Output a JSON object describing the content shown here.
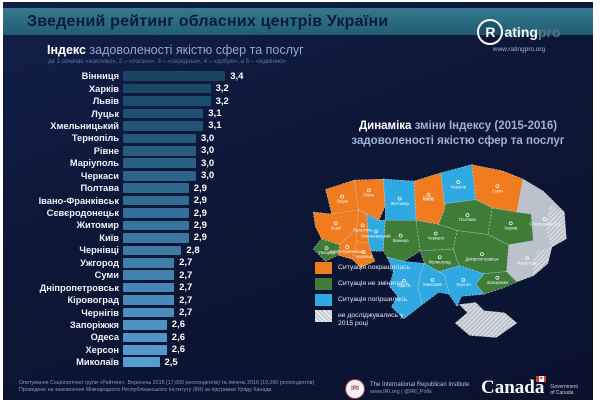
{
  "header": {
    "title": "Зведений рейтинг обласних центрів України",
    "brand": {
      "circle_letter": "R",
      "name_rest": "ating",
      "name_suffix": "pro",
      "url": "www.ratingpro.org"
    }
  },
  "left_panel": {
    "heading_bold": "Індекс",
    "heading_rest": " задоволеності якістю сфер та послуг",
    "scale_note": "де 1 означає «жахливо», 2 – «погано», 3 – «середньо», 4 – «добре», а 5 – «відмінно»"
  },
  "right_panel": {
    "heading_bold": "Динаміка",
    "heading_rest": " зміни Індексу (2015-2016)",
    "heading_line2": "задоволеності якістю сфер та послуг"
  },
  "chart_data": [
    {
      "type": "bar",
      "orientation": "horizontal",
      "title": "Індекс задоволеності якістю сфер та послуг",
      "scale_note": "де 1 означає «жахливо», 2 – «погано», 3 – «середньо», 4 – «добре», а 5 – «відмінно»",
      "categories": [
        "Вінниця",
        "Харків",
        "Львів",
        "Луцьк",
        "Хмельницький",
        "Тернопіль",
        "Рівне",
        "Маріуполь",
        "Черкаси",
        "Полтава",
        "Івано-Франківськ",
        "Сєвєродонецьк",
        "Житомир",
        "Київ",
        "Чернівці",
        "Ужгород",
        "Суми",
        "Дніпропетровськ",
        "Кіровоград",
        "Чернігів",
        "Запоріжжя",
        "Одеса",
        "Херсон",
        "Миколаїв"
      ],
      "values": [
        3.4,
        3.2,
        3.2,
        3.1,
        3.1,
        3.0,
        3.0,
        3.0,
        3.0,
        2.9,
        2.9,
        2.9,
        2.9,
        2.9,
        2.8,
        2.7,
        2.7,
        2.7,
        2.7,
        2.7,
        2.6,
        2.6,
        2.6,
        2.5
      ],
      "value_labels": [
        "3,4",
        "3,2",
        "3,2",
        "3,1",
        "3,1",
        "3,0",
        "3,0",
        "3,0",
        "3,0",
        "2,9",
        "2,9",
        "2,9",
        "2,9",
        "2,9",
        "2,8",
        "2,7",
        "2,7",
        "2,7",
        "2,7",
        "2,7",
        "2,6",
        "2,6",
        "2,6",
        "2,5"
      ],
      "xlim": [
        2.0,
        3.5
      ],
      "bar_color_top": "#174563",
      "bar_color_bottom": "#569dd0"
    },
    {
      "type": "choropleth",
      "title": "Динаміка зміни Індексу (2015-2016) задоволеності якістю сфер та послуг",
      "status_colors": {
        "improved": "#f07c1f",
        "unchanged": "#3e7c38",
        "worsened": "#2fa9e1",
        "not_surveyed": "#bcc2cb"
      },
      "legend": [
        {
          "status": "improved",
          "label": "Ситуація покращилась"
        },
        {
          "status": "unchanged",
          "label": "Ситуація не змінилась"
        },
        {
          "status": "worsened",
          "label": "Ситуація погіршилась"
        },
        {
          "status": "not_surveyed",
          "label": "не досліджувались у 2015 році"
        }
      ],
      "regions": [
        {
          "region": "volyn",
          "city": "Луцьк",
          "status": "improved"
        },
        {
          "region": "rivne",
          "city": "Рівне",
          "status": "improved"
        },
        {
          "region": "zhytomyr",
          "city": "Житомир",
          "status": "worsened"
        },
        {
          "region": "kyiv",
          "city": "Київ",
          "status": "improved",
          "bold": true
        },
        {
          "region": "chernihiv",
          "city": "Чернігів",
          "status": "worsened"
        },
        {
          "region": "sumy",
          "city": "Суми",
          "status": "improved"
        },
        {
          "region": "lviv",
          "city": "Львів",
          "status": "improved"
        },
        {
          "region": "ternopil",
          "city": "Тернопіль",
          "status": "improved"
        },
        {
          "region": "khmelnytskyi",
          "city": "Хмельницький",
          "status": "worsened"
        },
        {
          "region": "vinnytsia",
          "city": "Вінниця",
          "status": "unchanged"
        },
        {
          "region": "cherkasy",
          "city": "Черкаси",
          "status": "unchanged"
        },
        {
          "region": "poltava",
          "city": "Полтава",
          "status": "unchanged"
        },
        {
          "region": "kharkiv",
          "city": "Харків",
          "status": "unchanged"
        },
        {
          "region": "luhansk",
          "city": "Сєвєродонецьк",
          "status": "not_surveyed"
        },
        {
          "region": "donetsk",
          "city": "Маріуполь",
          "status": "not_surveyed"
        },
        {
          "region": "zakarpattia",
          "city": "Ужгород",
          "status": "unchanged"
        },
        {
          "region": "ivano-frankivsk",
          "city": "Івано-Франківськ",
          "status": "improved"
        },
        {
          "region": "chernivtsi",
          "city": "Чернівці",
          "status": "improved"
        },
        {
          "region": "kirovohrad",
          "city": "Кіровоград",
          "status": "unchanged"
        },
        {
          "region": "dnipropetrovsk",
          "city": "Дніпропетровськ",
          "status": "unchanged"
        },
        {
          "region": "zaporizhzhia",
          "city": "Запоріжжя",
          "status": "unchanged"
        },
        {
          "region": "kherson",
          "city": "Херсон",
          "status": "worsened"
        },
        {
          "region": "mykolaiv",
          "city": "Миколаїв",
          "status": "worsened"
        },
        {
          "region": "odesa",
          "city": "Одеса",
          "status": "worsened"
        },
        {
          "region": "crimea",
          "city": "",
          "status": "not_surveyed"
        }
      ]
    }
  ],
  "footer": {
    "source_line1": "Опитування Соціологічної групи «Рейтинг». Вересень 2015 (17,600 респондентів) та липень 2016 (19,200 респондентів)",
    "source_line2": "Проведене на замовлення Міжнародного Республіканського Інституту (IRI) за підтримки Уряду Канади",
    "iri": {
      "name": "The International Republican Institute",
      "contact": "www.IRI.org | @IRI_Polls",
      "abbr": "IRI"
    },
    "canada": {
      "wordmark": "Canada",
      "caption_line1": "Government",
      "caption_line2": "of Canada"
    }
  }
}
